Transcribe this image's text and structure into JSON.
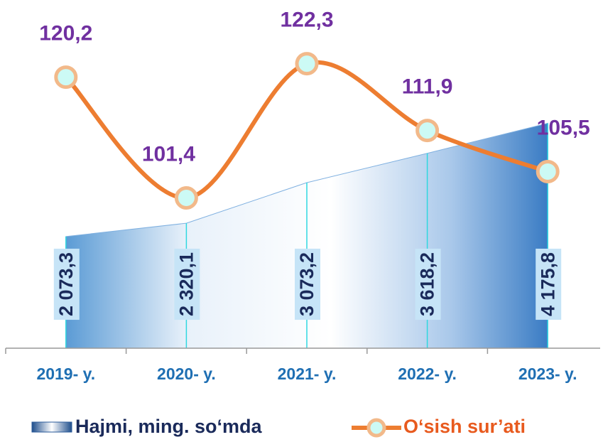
{
  "chart_data": {
    "type": "area+line",
    "categories": [
      "2019- y.",
      "2020- y.",
      "2021- y.",
      "2022- y.",
      "2023- y."
    ],
    "series": [
      {
        "name": "Hajmi, ming. so‘mda",
        "type": "area",
        "color": "#5b9bd5",
        "values": [
          2073.3,
          2320.1,
          3073.2,
          3618.2,
          4175.8
        ],
        "value_labels": [
          "2 073,3",
          "2 320,1",
          "3 073,2",
          "3 618,2",
          "4 175,8"
        ]
      },
      {
        "name": "O‘sish sur’ati",
        "type": "line",
        "axis": "y2",
        "color": "#ed7d31",
        "values": [
          120.2,
          101.4,
          122.3,
          111.9,
          105.5
        ],
        "value_labels": [
          "120,2",
          "101,4",
          "122,3",
          "111,9",
          "105,5"
        ]
      }
    ],
    "ylim": [
      0,
      6200
    ],
    "y2lim": [
      78,
      130
    ]
  }
}
